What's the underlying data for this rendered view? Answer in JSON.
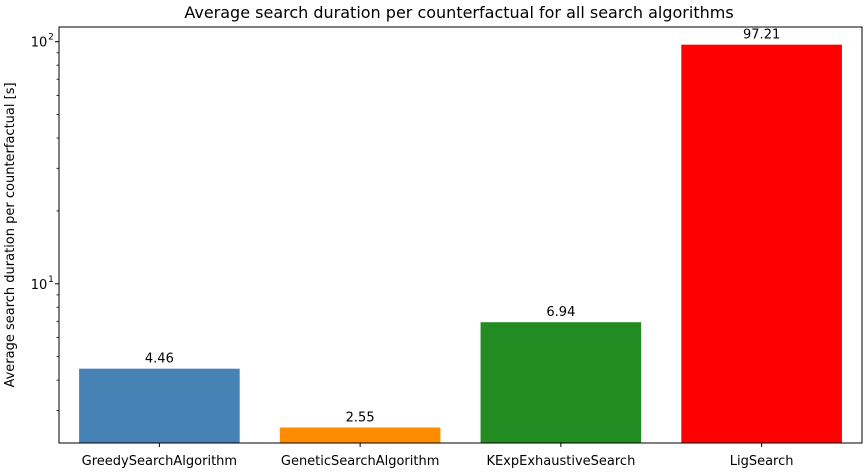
{
  "chart_data": {
    "type": "bar",
    "title": "Average search duration per counterfactual for all search algorithms",
    "xlabel": "",
    "ylabel": "Average search duration per counterfactual [s]",
    "yscale": "log",
    "ylim": [
      2.2,
      115
    ],
    "yticks_major": [
      {
        "value": 10,
        "base": "10",
        "exp": "1"
      },
      {
        "value": 100,
        "base": "10",
        "exp": "2"
      }
    ],
    "categories": [
      "GreedySearchAlgorithm",
      "GeneticSearchAlgorithm",
      "KExpExhaustiveSearch",
      "LigSearch"
    ],
    "values": [
      4.46,
      2.55,
      6.94,
      97.21
    ],
    "data_labels": [
      "4.46",
      "2.55",
      "6.94",
      "97.21"
    ],
    "colors": [
      "#4682b4",
      "#ff8c00",
      "#228b22",
      "#ff0000"
    ],
    "grid": false,
    "legend": "none"
  }
}
